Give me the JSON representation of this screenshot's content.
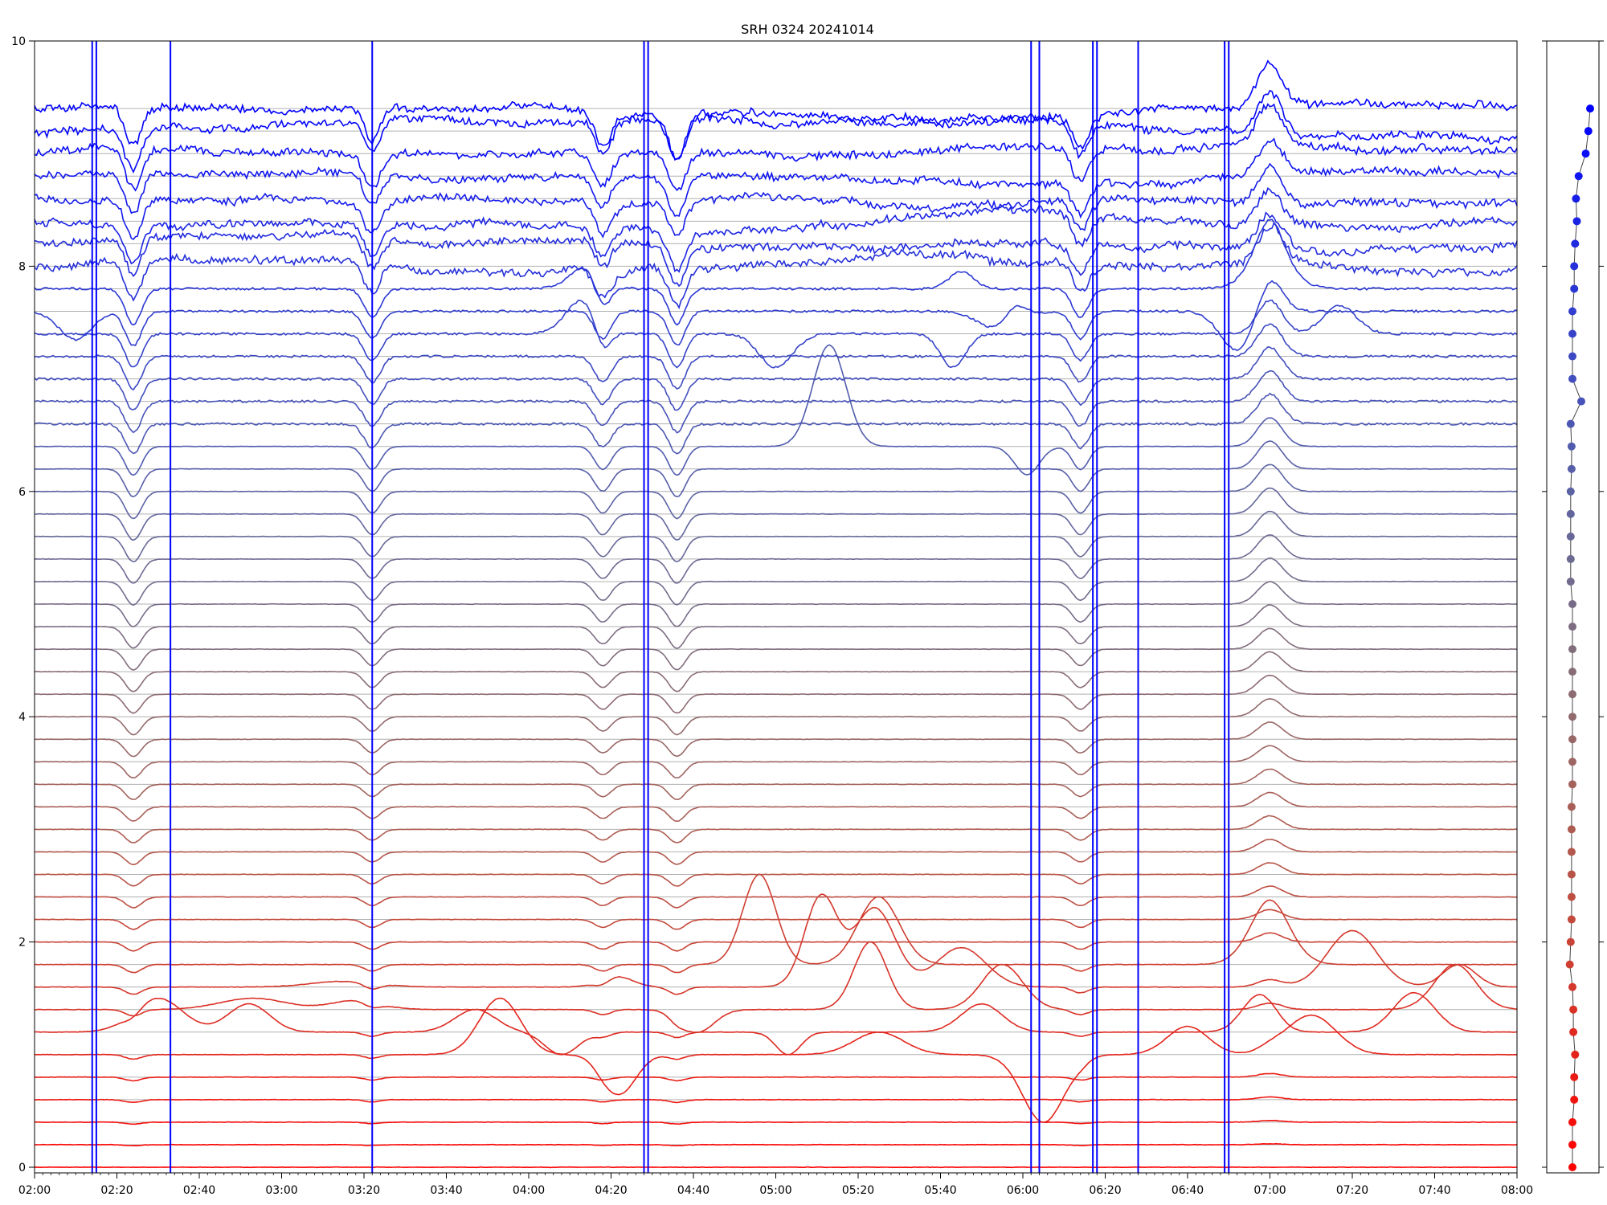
{
  "chart_data": {
    "type": "line",
    "title": "SRH 0324 20241014",
    "xlabel": "",
    "ylabel": "",
    "x_tick_labels": [
      "02:00",
      "02:20",
      "02:40",
      "03:00",
      "03:20",
      "03:40",
      "04:00",
      "04:20",
      "04:40",
      "05:00",
      "05:20",
      "05:40",
      "06:00",
      "06:20",
      "06:40",
      "07:00",
      "07:20",
      "07:40",
      "08:00"
    ],
    "y_tick_labels": [
      "0",
      "2",
      "4",
      "6",
      "8",
      "10"
    ],
    "xlim_minutes": [
      120,
      480
    ],
    "ylim": [
      -0.05,
      10
    ],
    "grid": "horizontal lines at each series baseline",
    "series_count": 48,
    "series_spacing": 0.2,
    "color_start": "#ff0000",
    "color_end": "#0000ff",
    "marker_panel_offsets": [
      0.0,
      0.0,
      0.0,
      0.02,
      0.02,
      0.03,
      0.01,
      0.01,
      0.0,
      -0.03,
      -0.02,
      -0.01,
      -0.01,
      -0.01,
      -0.01,
      -0.01,
      -0.01,
      0.0,
      0.0,
      0.0,
      0.0,
      0.0,
      0.0,
      0.0,
      0.0,
      0.0,
      -0.02,
      -0.02,
      -0.02,
      -0.02,
      -0.02,
      -0.01,
      -0.01,
      -0.02,
      0.1,
      0.0,
      0.0,
      0.0,
      0.0,
      0.02,
      0.02,
      0.03,
      0.05,
      0.04,
      0.07,
      0.15,
      0.18,
      0.2
    ],
    "series_features": [
      {
        "index": 5,
        "bumps": [
          {
            "t": 233,
            "a": 0.5,
            "w": 5
          },
          {
            "t": 262,
            "a": -0.35,
            "w": 4
          },
          {
            "t": 325,
            "a": 0.2,
            "w": 6
          },
          {
            "t": 365,
            "a": -0.6,
            "w": 5
          },
          {
            "t": 400,
            "a": 0.25,
            "w": 5
          },
          {
            "t": 430,
            "a": 0.35,
            "w": 6
          }
        ]
      },
      {
        "index": 6,
        "bumps": [
          {
            "t": 150,
            "a": 0.3,
            "w": 6
          },
          {
            "t": 172,
            "a": 0.25,
            "w": 5
          },
          {
            "t": 227,
            "a": 0.2,
            "w": 5
          },
          {
            "t": 248,
            "a": -0.2,
            "w": 4
          },
          {
            "t": 303,
            "a": -0.2,
            "w": 3
          },
          {
            "t": 350,
            "a": 0.25,
            "w": 5
          },
          {
            "t": 417,
            "a": 0.3,
            "w": 4
          },
          {
            "t": 455,
            "a": 0.35,
            "w": 5
          }
        ]
      },
      {
        "index": 7,
        "bumps": [
          {
            "t": 173,
            "a": 0.1,
            "w": 8
          },
          {
            "t": 198,
            "a": 0.08,
            "w": 6
          },
          {
            "t": 281,
            "a": -0.2,
            "w": 4
          },
          {
            "t": 323,
            "a": 0.6,
            "w": 4
          },
          {
            "t": 355,
            "a": 0.4,
            "w": 5
          },
          {
            "t": 465,
            "a": 0.4,
            "w": 5
          }
        ]
      },
      {
        "index": 8,
        "bumps": [
          {
            "t": 195,
            "a": 0.05,
            "w": 8
          },
          {
            "t": 261,
            "a": 0.1,
            "w": 4
          },
          {
            "t": 311,
            "a": 0.8,
            "w": 4
          },
          {
            "t": 324,
            "a": 0.7,
            "w": 5
          },
          {
            "t": 345,
            "a": 0.35,
            "w": 6
          },
          {
            "t": 440,
            "a": 0.5,
            "w": 6
          },
          {
            "t": 466,
            "a": 0.2,
            "w": 4
          }
        ]
      },
      {
        "index": 9,
        "bumps": [
          {
            "t": 296,
            "a": 0.8,
            "w": 4
          },
          {
            "t": 325,
            "a": 0.6,
            "w": 5
          },
          {
            "t": 420,
            "a": 0.5,
            "w": 5
          }
        ]
      },
      {
        "index": 32,
        "bumps": [
          {
            "t": 313,
            "a": 0.9,
            "w": 4
          },
          {
            "t": 361,
            "a": -0.25,
            "w": 3
          }
        ]
      },
      {
        "index": 37,
        "bumps": [
          {
            "t": 253,
            "a": 0.3,
            "w": 4
          },
          {
            "t": 300,
            "a": -0.3,
            "w": 4
          },
          {
            "t": 343,
            "a": -0.3,
            "w": 3
          },
          {
            "t": 437,
            "a": 0.25,
            "w": 4
          }
        ]
      },
      {
        "index": 38,
        "bumps": [
          {
            "t": 130,
            "a": -0.25,
            "w": 4
          },
          {
            "t": 355,
            "a": -0.2,
            "w": 5
          },
          {
            "t": 358,
            "a": 0.2,
            "w": 3
          },
          {
            "t": 412,
            "a": -0.35,
            "w": 4
          }
        ]
      },
      {
        "index": 39,
        "bumps": [
          {
            "t": 254,
            "a": 0.2,
            "w": 4
          },
          {
            "t": 345,
            "a": 0.15,
            "w": 3
          },
          {
            "t": 420,
            "a": 0.3,
            "w": 5
          }
        ]
      }
    ]
  }
}
